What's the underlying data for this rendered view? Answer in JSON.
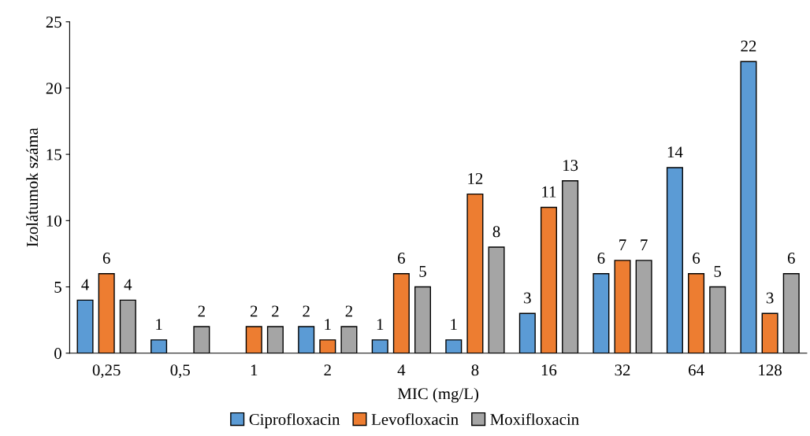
{
  "chart_data": {
    "type": "bar",
    "xlabel": "MIC (mg/L)",
    "ylabel": "Izolátumok száma",
    "categories": [
      "0,25",
      "0,5",
      "1",
      "2",
      "4",
      "8",
      "16",
      "32",
      "64",
      "128"
    ],
    "series": [
      {
        "name": "Ciprofloxacin",
        "color": "#5b9bd5",
        "values": [
          4,
          1,
          null,
          2,
          1,
          1,
          3,
          6,
          14,
          22
        ]
      },
      {
        "name": "Levofloxacin",
        "color": "#ed7d31",
        "values": [
          6,
          null,
          2,
          1,
          6,
          12,
          11,
          7,
          6,
          3
        ]
      },
      {
        "name": "Moxifloxacin",
        "color": "#a5a5a5",
        "values": [
          4,
          2,
          2,
          2,
          5,
          8,
          13,
          7,
          5,
          6
        ]
      }
    ],
    "ylim": [
      0,
      25
    ],
    "yticks": [
      0,
      5,
      10,
      15,
      20,
      25
    ],
    "grid": false,
    "legend": "bottom",
    "data_labels": true
  }
}
